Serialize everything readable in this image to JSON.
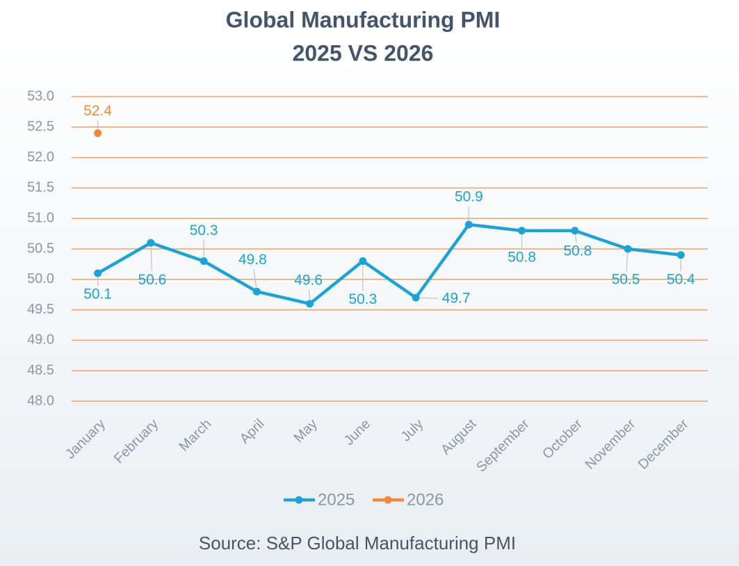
{
  "chart_data": {
    "type": "line",
    "title": "Global Manufacturing PMI",
    "subtitle": "2025 VS 2026",
    "source": "Source: S&P Global Manufacturing PMI",
    "categories": [
      "January",
      "February",
      "March",
      "April",
      "May",
      "June",
      "July",
      "August",
      "September",
      "October",
      "November",
      "December"
    ],
    "series": [
      {
        "name": "2025",
        "color": "#1aa3d8",
        "values": [
          50.1,
          50.6,
          50.3,
          49.8,
          49.6,
          50.3,
          49.7,
          50.9,
          50.8,
          50.8,
          50.5,
          50.4
        ]
      },
      {
        "name": "2026",
        "color": "#f08a3a",
        "values": [
          52.4,
          null,
          null,
          null,
          null,
          null,
          null,
          null,
          null,
          null,
          null,
          null
        ]
      }
    ],
    "ylim": [
      48,
      53
    ],
    "yticks": [
      {
        "value": 48,
        "label": "48.0"
      },
      48.5,
      {
        "value": 49,
        "label": "49.0"
      },
      49.5,
      {
        "value": 50,
        "label": "50.0"
      },
      50.5,
      {
        "value": 51,
        "label": "51.0"
      },
      51.5,
      {
        "value": 52,
        "label": "52.0"
      },
      52.5,
      {
        "value": 53,
        "label": "53.0"
      }
    ],
    "grid": true,
    "grid_color": "#f2a160",
    "legend": "bottom"
  }
}
